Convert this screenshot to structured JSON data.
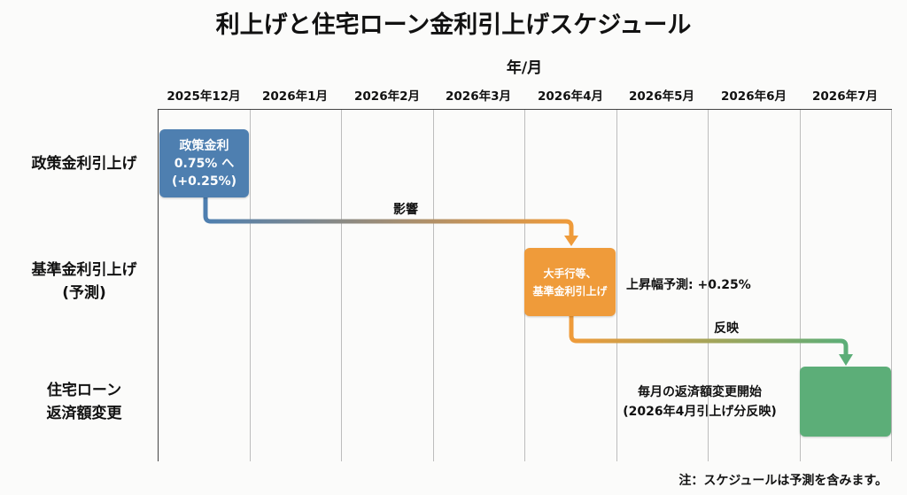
{
  "title": "利上げと住宅ローン金利引上げスケジュール",
  "axis_title": "年/月",
  "columns": [
    "2025年12月",
    "2026年1月",
    "2026年2月",
    "2026年3月",
    "2026年4月",
    "2026年5月",
    "2026年6月",
    "2026年7月"
  ],
  "rows": [
    {
      "label_lines": [
        "政策金利引上げ"
      ]
    },
    {
      "label_lines": [
        "基準金利引上げ",
        "(予測)"
      ]
    },
    {
      "label_lines": [
        "住宅ローン",
        "返済額変更"
      ]
    }
  ],
  "boxes": {
    "policy": {
      "lines": [
        "政策金利",
        "0.75% へ",
        "(+0.25%)"
      ],
      "color": "#4e7fb0"
    },
    "base": {
      "lines": [
        "大手行等、",
        "基準金利引上げ"
      ],
      "color": "#ef9b3a"
    },
    "loan": {
      "color": "#5cae78"
    }
  },
  "arrows": {
    "influence_label": "影響",
    "reflect_label": "反映"
  },
  "annotations": {
    "rise_forecast": "上昇幅予測: +0.25%",
    "loan_change_lines": [
      "毎月の返済額変更開始",
      "(2026年4月引上げ分反映)"
    ]
  },
  "footnote": "注：スケジュールは予測を含みます。"
}
